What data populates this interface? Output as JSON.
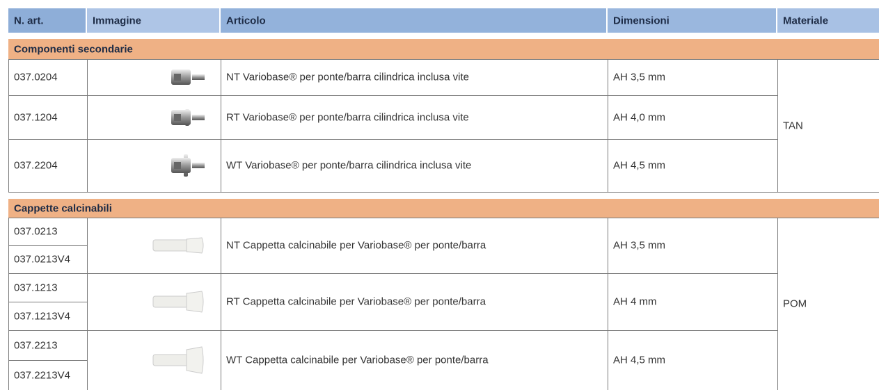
{
  "table": {
    "columns": [
      "N. art.",
      "Immagine",
      "Articolo",
      "Dimensioni",
      "Materiale"
    ],
    "sections": [
      {
        "title": "Componenti secondarie",
        "material": "TAN",
        "rows": [
          {
            "art": [
              "037.0204"
            ],
            "article": "NT Variobase® per ponte/barra cilindrica inclusa vite",
            "dimension": "AH 3,5 mm"
          },
          {
            "art": [
              "037.1204"
            ],
            "article": "RT Variobase® per ponte/barra cilindrica inclusa vite",
            "dimension": "AH 4,0 mm"
          },
          {
            "art": [
              "037.2204"
            ],
            "article": "WT Variobase® per ponte/barra cilindrica inclusa vite",
            "dimension": "AH 4,5 mm"
          }
        ]
      },
      {
        "title": "Cappette calcinabili",
        "material": "POM",
        "rows": [
          {
            "art": [
              "037.0213",
              "037.0213V4"
            ],
            "article": "NT Cappetta calcinabile per Variobase® per ponte/barra",
            "dimension": "AH 3,5 mm"
          },
          {
            "art": [
              "037.1213",
              "037.1213V4"
            ],
            "article": "RT Cappetta calcinabile per Variobase® per ponte/barra",
            "dimension": "AH 4 mm"
          },
          {
            "art": [
              "037.2213",
              "037.2213V4"
            ],
            "article": "WT Cappetta calcinabile per Variobase® per ponte/barra",
            "dimension": "AH 4,5 mm"
          }
        ]
      }
    ]
  }
}
